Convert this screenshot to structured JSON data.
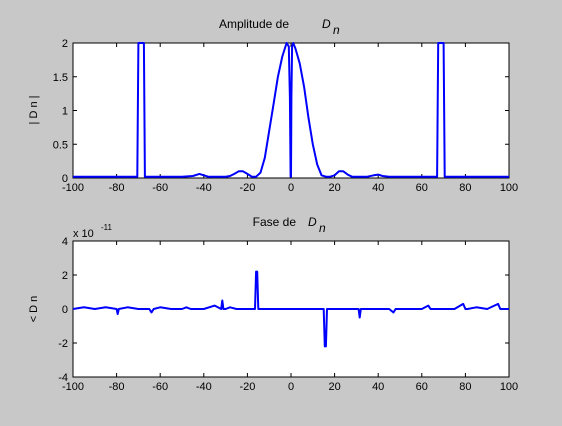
{
  "figure": {
    "background": "#c8c8c8",
    "line_color": "#0000ff"
  },
  "chart_data": [
    {
      "type": "line",
      "title": "Amplitude de",
      "title_math": "D",
      "title_sub": "n",
      "ylabel": "| D n |",
      "xlabel": "",
      "xlim": [
        -100,
        100
      ],
      "ylim": [
        0,
        2
      ],
      "xticks": [
        -100,
        -80,
        -60,
        -40,
        -20,
        0,
        20,
        40,
        60,
        80,
        100
      ],
      "yticks": [
        0,
        0.5,
        1,
        1.5,
        2
      ],
      "ytick_labels": [
        "0",
        "0.5",
        "1",
        "1.5",
        "2"
      ],
      "grid": false,
      "x": [
        -100,
        -72,
        -70.5,
        -70,
        -69.5,
        -68,
        -67.5,
        -67,
        -50,
        -45,
        -42,
        -40,
        -38,
        -35,
        -30,
        -28,
        -26,
        -24,
        -22,
        -20,
        -18,
        -16,
        -14,
        -12,
        -10,
        -8,
        -6,
        -4,
        -2,
        -1,
        -0.5,
        -0.2,
        0,
        0.2,
        0.5,
        1,
        2,
        4,
        6,
        8,
        10,
        12,
        14,
        16,
        18,
        20,
        22,
        24,
        26,
        28,
        30,
        35,
        38,
        40,
        42,
        45,
        50,
        67,
        67.5,
        68,
        69.5,
        70,
        70.5,
        72,
        100
      ],
      "y": [
        0.02,
        0.02,
        0.02,
        2,
        2,
        2,
        2,
        0.02,
        0.02,
        0.03,
        0.06,
        0.04,
        0.02,
        0.02,
        0.02,
        0.03,
        0.06,
        0.1,
        0.1,
        0.06,
        0.02,
        0.02,
        0.08,
        0.3,
        0.7,
        1.1,
        1.5,
        1.8,
        2,
        1.95,
        1.2,
        0.02,
        0.02,
        1.2,
        1.95,
        2,
        1.92,
        1.7,
        1.35,
        0.9,
        0.5,
        0.2,
        0.04,
        0.02,
        0.02,
        0.04,
        0.1,
        0.1,
        0.05,
        0.02,
        0.02,
        0.02,
        0.04,
        0.05,
        0.03,
        0.02,
        0.02,
        0.02,
        2,
        2,
        2,
        2,
        0.02,
        0.02,
        0.02
      ]
    },
    {
      "type": "line",
      "title": "Fase de",
      "title_math": "D",
      "title_sub": "n",
      "ylabel": "< D n",
      "xlabel": "",
      "exponent_label": "x 10",
      "exponent_power": "-11",
      "xlim": [
        -100,
        100
      ],
      "ylim": [
        -4,
        4
      ],
      "xticks": [
        -100,
        -80,
        -60,
        -40,
        -20,
        0,
        20,
        40,
        60,
        80,
        100
      ],
      "yticks": [
        -4,
        -2,
        0,
        2,
        4
      ],
      "ytick_labels": [
        "-4",
        "-2",
        "0",
        "2",
        "4"
      ],
      "grid": false,
      "x": [
        -100,
        -95,
        -90,
        -85,
        -80,
        -79.5,
        -79,
        -75,
        -70,
        -65,
        -64,
        -63,
        -60,
        -55,
        -50,
        -48,
        -46,
        -40,
        -35,
        -32,
        -31.5,
        -31,
        -30,
        -28,
        -25,
        -20,
        -16.5,
        -16,
        -15.5,
        -15,
        -14.5,
        -12,
        -8,
        0,
        8,
        14.5,
        15,
        15.5,
        16,
        16.5,
        20,
        28,
        31,
        31.5,
        32,
        32.5,
        35,
        45,
        47,
        48,
        49,
        55,
        60,
        63,
        64,
        65,
        70,
        75,
        79,
        80,
        81,
        85,
        90,
        95,
        96,
        97,
        100
      ],
      "y": [
        0,
        0.1,
        0,
        0.1,
        0,
        -0.3,
        0,
        0.1,
        0,
        0,
        -0.2,
        0,
        0.1,
        0,
        0,
        0.1,
        0,
        0,
        0.2,
        0,
        0.5,
        0,
        0,
        0.1,
        0,
        0,
        0,
        2.2,
        2.2,
        0,
        0,
        0,
        0,
        0,
        0,
        0,
        0,
        -2.2,
        -2.2,
        0,
        0,
        0,
        0,
        -0.5,
        0,
        0,
        0,
        0,
        -0.2,
        0,
        0,
        0,
        0,
        0.2,
        0,
        0,
        0,
        0,
        0.3,
        0,
        0,
        0.1,
        0,
        0.3,
        0,
        0,
        0
      ]
    }
  ]
}
